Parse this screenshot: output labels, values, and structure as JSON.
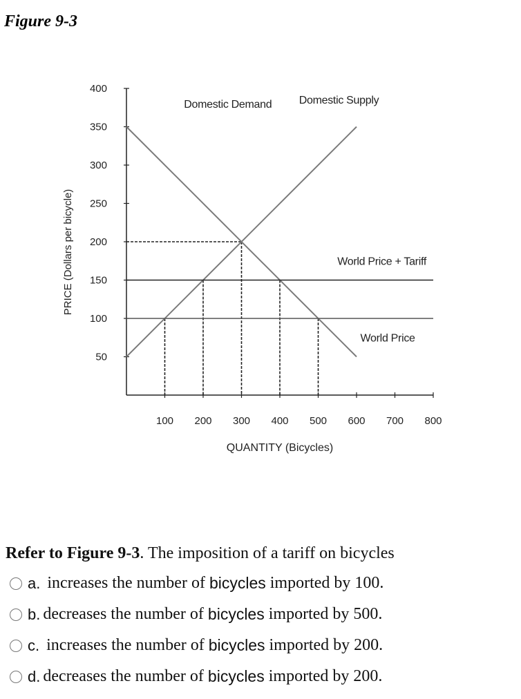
{
  "figure_title": "Figure 9-3",
  "chart_data": {
    "type": "line",
    "title": "",
    "xlabel": "QUANTITY (Bicycles)",
    "ylabel": "PRICE (Dollars per bicycle)",
    "xlim": [
      0,
      800
    ],
    "ylim": [
      0,
      400
    ],
    "x_ticks": [
      100,
      200,
      300,
      400,
      500,
      600,
      700,
      800
    ],
    "y_ticks": [
      50,
      100,
      150,
      200,
      250,
      300,
      350,
      400
    ],
    "grid": false,
    "series": [
      {
        "name": "Domestic Demand",
        "points": [
          [
            0,
            350
          ],
          [
            600,
            50
          ]
        ]
      },
      {
        "name": "Domestic Supply",
        "points": [
          [
            0,
            50
          ],
          [
            600,
            350
          ]
        ]
      },
      {
        "name": "World Price + Tariff",
        "points": [
          [
            0,
            150
          ],
          [
            800,
            150
          ]
        ]
      },
      {
        "name": "World Price",
        "points": [
          [
            0,
            100
          ],
          [
            800,
            100
          ]
        ]
      }
    ],
    "reference_lines": [
      {
        "type": "horizontal-dashed",
        "y": 200,
        "x_to": 300
      },
      {
        "type": "vertical-dashed",
        "x": 100,
        "y_to": 100
      },
      {
        "type": "vertical-dashed",
        "x": 200,
        "y_to": 150
      },
      {
        "type": "vertical-dashed",
        "x": 300,
        "y_to": 200
      },
      {
        "type": "vertical-dashed",
        "x": 400,
        "y_to": 150
      },
      {
        "type": "vertical-dashed",
        "x": 500,
        "y_to": 100
      }
    ],
    "annotations": [
      {
        "text": "Domestic Demand",
        "x": 150,
        "y": 375
      },
      {
        "text": "Domestic Supply",
        "x": 450,
        "y": 380
      },
      {
        "text": "World Price + Tariff",
        "x": 550,
        "y": 170
      },
      {
        "text": "World Price",
        "x": 610,
        "y": 70
      }
    ]
  },
  "question": {
    "prefix": "Refer to Figure 9-3",
    "text": ". The imposition of a tariff on bicycles"
  },
  "options": [
    {
      "letter": "a.",
      "pre": " increases the number of ",
      "keyword": "bicycles",
      "post": " imported by 100."
    },
    {
      "letter": "b.",
      "pre": "decreases the number of ",
      "keyword": "bicycles",
      "post": " imported by 500."
    },
    {
      "letter": "c.",
      "pre": " increases the number of ",
      "keyword": "bicycles",
      "post": " imported by 200."
    },
    {
      "letter": "d.",
      "pre": "decreases the number of ",
      "keyword": "bicycles",
      "post": " imported by 200."
    }
  ]
}
